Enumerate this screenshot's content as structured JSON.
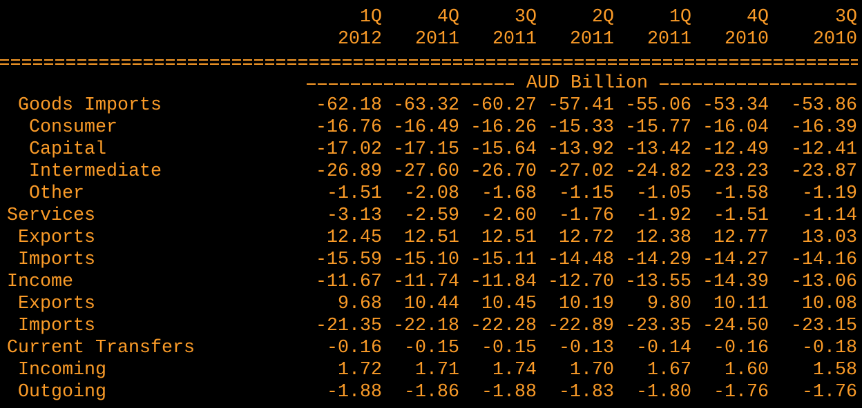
{
  "table": {
    "columns": [
      {
        "quarter": "1Q",
        "year": "2012"
      },
      {
        "quarter": "4Q",
        "year": "2011"
      },
      {
        "quarter": "3Q",
        "year": "2011"
      },
      {
        "quarter": "2Q",
        "year": "2011"
      },
      {
        "quarter": "1Q",
        "year": "2011"
      },
      {
        "quarter": "4Q",
        "year": "2010"
      },
      {
        "quarter": "3Q",
        "year": "2010"
      }
    ],
    "unit": "AUD Billion",
    "rows": [
      {
        "label": "Goods Imports",
        "values": [
          "-62.18",
          "-63.32",
          "-60.27",
          "-57.41",
          "-55.06",
          "-53.34",
          "-53.86"
        ]
      },
      {
        "label": "Consumer",
        "values": [
          "-16.76",
          "-16.49",
          "-16.26",
          "-15.33",
          "-15.77",
          "-16.04",
          "-16.39"
        ]
      },
      {
        "label": "Capital",
        "values": [
          "-17.02",
          "-17.15",
          "-15.64",
          "-13.92",
          "-13.42",
          "-12.49",
          "-12.41"
        ]
      },
      {
        "label": "Intermediate",
        "values": [
          "-26.89",
          "-27.60",
          "-26.70",
          "-27.02",
          "-24.82",
          "-23.23",
          "-23.87"
        ]
      },
      {
        "label": "Other",
        "values": [
          "-1.51",
          "-2.08",
          "-1.68",
          "-1.15",
          "-1.05",
          "-1.58",
          "-1.19"
        ]
      },
      {
        "label": "Services",
        "values": [
          "-3.13",
          "-2.59",
          "-2.60",
          "-1.76",
          "-1.92",
          "-1.51",
          "-1.14"
        ]
      },
      {
        "label": "Exports",
        "values": [
          "12.45",
          "12.51",
          "12.51",
          "12.72",
          "12.38",
          "12.77",
          "13.03"
        ]
      },
      {
        "label": "Imports",
        "values": [
          "-15.59",
          "-15.10",
          "-15.11",
          "-14.48",
          "-14.29",
          "-14.27",
          "-14.16"
        ]
      },
      {
        "label": "Income",
        "values": [
          "-11.67",
          "-11.74",
          "-11.84",
          "-12.70",
          "-13.55",
          "-14.39",
          "-13.06"
        ]
      },
      {
        "label": "Exports",
        "values": [
          "9.68",
          "10.44",
          "10.45",
          "10.19",
          "9.80",
          "10.11",
          "10.08"
        ]
      },
      {
        "label": "Imports",
        "values": [
          "-21.35",
          "-22.18",
          "-22.28",
          "-22.89",
          "-23.35",
          "-24.50",
          "-23.15"
        ]
      },
      {
        "label": "Current Transfers",
        "values": [
          "-0.16",
          "-0.15",
          "-0.15",
          "-0.13",
          "-0.14",
          "-0.16",
          "-0.18"
        ]
      },
      {
        "label": "Incoming",
        "values": [
          "1.72",
          "1.71",
          "1.74",
          "1.70",
          "1.67",
          "1.60",
          "1.58"
        ]
      },
      {
        "label": "Outgoing",
        "values": [
          "-1.88",
          "-1.86",
          "-1.88",
          "-1.83",
          "-1.80",
          "-1.76",
          "-1.76"
        ]
      }
    ]
  }
}
